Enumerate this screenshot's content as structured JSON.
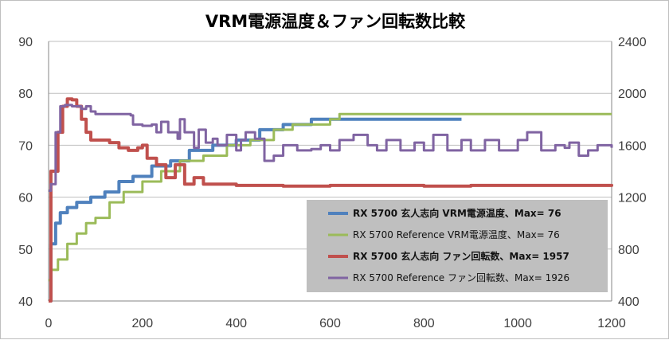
{
  "chart_data": {
    "type": "line",
    "title": "VRM電源温度＆ファン回転数比較",
    "x_ticks": [
      "0",
      "200",
      "400",
      "600",
      "800",
      "1000",
      "1200"
    ],
    "y_left_ticks": [
      "40",
      "50",
      "60",
      "70",
      "80",
      "90"
    ],
    "y_right_ticks": [
      "400",
      "800",
      "1200",
      "1600",
      "2000",
      "2400"
    ],
    "xlim": [
      0,
      1200
    ],
    "ylim_left": [
      40,
      90
    ],
    "ylim_right": [
      400,
      2400
    ],
    "grid": "horizontal",
    "legend_position": "bottom-right",
    "series": [
      {
        "name": "RX 5700 玄人志向 VRM電源温度、Max= 76",
        "axis": "left",
        "color": "#4f81bd",
        "bold": true,
        "x": [
          0,
          5,
          15,
          25,
          40,
          60,
          90,
          120,
          150,
          180,
          220,
          260,
          300,
          350,
          400,
          450,
          500,
          560,
          620,
          700,
          800,
          880
        ],
        "y": [
          40,
          51,
          55,
          57,
          58,
          59,
          60,
          61,
          63,
          64,
          66,
          67,
          69,
          70,
          71,
          73,
          74,
          75,
          75,
          75,
          75,
          75
        ]
      },
      {
        "name": "RX 5700 Reference VRM電源温度、Max= 76",
        "axis": "left",
        "color": "#9bbb59",
        "bold": false,
        "x": [
          0,
          5,
          20,
          40,
          60,
          80,
          100,
          130,
          160,
          200,
          240,
          280,
          330,
          380,
          430,
          480,
          520,
          560,
          600,
          620,
          700,
          800,
          900,
          1000,
          1100,
          1200
        ],
        "y": [
          44,
          46,
          48,
          51,
          53,
          55,
          56,
          59,
          61,
          63,
          65,
          67,
          68,
          70,
          71,
          73,
          74,
          74,
          75,
          76,
          76,
          76,
          76,
          76,
          76,
          76
        ]
      },
      {
        "name": "RX 5700 玄人志向 ファン回転数、Max= 1957",
        "axis": "right",
        "color": "#c0504d",
        "bold": true,
        "x": [
          0,
          5,
          20,
          30,
          40,
          50,
          60,
          70,
          80,
          90,
          110,
          130,
          150,
          170,
          190,
          200,
          210,
          230,
          250,
          270,
          290,
          310,
          330,
          360,
          400,
          500,
          600,
          700,
          800,
          900,
          1000,
          1100,
          1200
        ],
        "y": [
          400,
          1400,
          1700,
          1900,
          1957,
          1950,
          1900,
          1800,
          1700,
          1640,
          1640,
          1620,
          1580,
          1560,
          1580,
          1600,
          1500,
          1450,
          1350,
          1450,
          1300,
          1350,
          1300,
          1300,
          1290,
          1285,
          1290,
          1290,
          1285,
          1290,
          1290,
          1290,
          1300
        ]
      },
      {
        "name": "RX 5700 Reference ファン回転数、Max= 1926",
        "axis": "right",
        "color": "#8064a2",
        "bold": false,
        "x": [
          0,
          5,
          15,
          25,
          35,
          50,
          70,
          80,
          90,
          100,
          120,
          150,
          175,
          180,
          200,
          220,
          230,
          240,
          255,
          275,
          280,
          290,
          310,
          320,
          335,
          350,
          360,
          380,
          400,
          410,
          420,
          440,
          460,
          480,
          500,
          530,
          560,
          580,
          600,
          620,
          650,
          680,
          700,
          720,
          750,
          780,
          800,
          820,
          850,
          880,
          900,
          930,
          960,
          1000,
          1020,
          1050,
          1080,
          1100,
          1110,
          1130,
          1150,
          1170,
          1200
        ],
        "y": [
          1250,
          1300,
          1700,
          1900,
          1910,
          1900,
          1880,
          1900,
          1860,
          1840,
          1840,
          1840,
          1830,
          1760,
          1750,
          1760,
          1700,
          1780,
          1700,
          1650,
          1800,
          1700,
          1580,
          1720,
          1620,
          1650,
          1600,
          1680,
          1560,
          1640,
          1700,
          1650,
          1480,
          1520,
          1600,
          1560,
          1570,
          1600,
          1560,
          1640,
          1680,
          1600,
          1560,
          1640,
          1560,
          1620,
          1560,
          1680,
          1560,
          1640,
          1560,
          1640,
          1560,
          1640,
          1700,
          1560,
          1600,
          1580,
          1620,
          1520,
          1560,
          1600,
          1580
        ]
      }
    ]
  }
}
